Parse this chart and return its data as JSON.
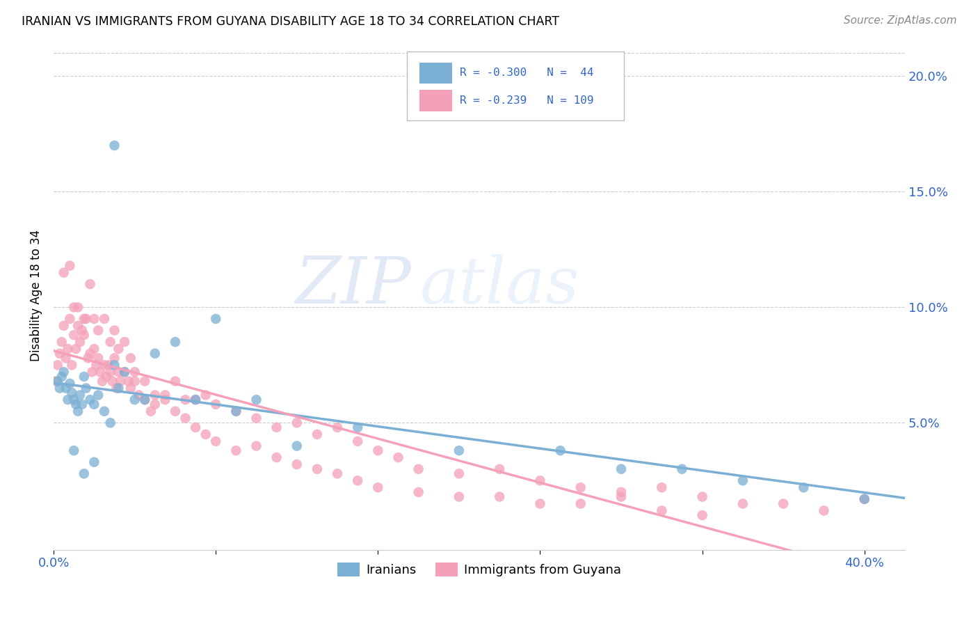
{
  "title": "IRANIAN VS IMMIGRANTS FROM GUYANA DISABILITY AGE 18 TO 34 CORRELATION CHART",
  "source": "Source: ZipAtlas.com",
  "ylabel": "Disability Age 18 to 34",
  "xlim": [
    0.0,
    0.42
  ],
  "ylim": [
    -0.005,
    0.215
  ],
  "yticks": [
    0.05,
    0.1,
    0.15,
    0.2
  ],
  "ytick_labels": [
    "5.0%",
    "10.0%",
    "15.0%",
    "20.0%"
  ],
  "xticks": [
    0.0,
    0.08,
    0.16,
    0.24,
    0.32,
    0.4
  ],
  "color_iranian": "#7bafd4",
  "color_guyana": "#f4a0b8",
  "color_text_blue": "#3366cc",
  "watermark_text": "ZIPatlas",
  "iranian_x": [
    0.002,
    0.003,
    0.004,
    0.005,
    0.006,
    0.007,
    0.008,
    0.009,
    0.01,
    0.011,
    0.012,
    0.013,
    0.014,
    0.015,
    0.016,
    0.018,
    0.02,
    0.022,
    0.025,
    0.028,
    0.03,
    0.032,
    0.035,
    0.04,
    0.045,
    0.05,
    0.06,
    0.07,
    0.08,
    0.09,
    0.1,
    0.12,
    0.15,
    0.2,
    0.25,
    0.28,
    0.31,
    0.34,
    0.37,
    0.4,
    0.03,
    0.02,
    0.015,
    0.01
  ],
  "iranian_y": [
    0.068,
    0.065,
    0.07,
    0.072,
    0.065,
    0.06,
    0.067,
    0.063,
    0.06,
    0.058,
    0.055,
    0.062,
    0.058,
    0.07,
    0.065,
    0.06,
    0.058,
    0.062,
    0.055,
    0.05,
    0.075,
    0.065,
    0.072,
    0.06,
    0.06,
    0.08,
    0.085,
    0.06,
    0.095,
    0.055,
    0.06,
    0.04,
    0.048,
    0.038,
    0.038,
    0.03,
    0.03,
    0.025,
    0.022,
    0.017,
    0.17,
    0.033,
    0.028,
    0.038
  ],
  "guyana_x": [
    0.001,
    0.002,
    0.003,
    0.004,
    0.005,
    0.006,
    0.007,
    0.008,
    0.009,
    0.01,
    0.011,
    0.012,
    0.013,
    0.014,
    0.015,
    0.016,
    0.017,
    0.018,
    0.019,
    0.02,
    0.021,
    0.022,
    0.023,
    0.024,
    0.025,
    0.026,
    0.027,
    0.028,
    0.029,
    0.03,
    0.031,
    0.032,
    0.033,
    0.035,
    0.037,
    0.038,
    0.04,
    0.042,
    0.045,
    0.048,
    0.05,
    0.055,
    0.06,
    0.065,
    0.07,
    0.075,
    0.08,
    0.09,
    0.1,
    0.11,
    0.12,
    0.13,
    0.14,
    0.15,
    0.16,
    0.17,
    0.18,
    0.2,
    0.22,
    0.24,
    0.26,
    0.28,
    0.3,
    0.32,
    0.34,
    0.36,
    0.38,
    0.4,
    0.005,
    0.008,
    0.01,
    0.012,
    0.015,
    0.018,
    0.02,
    0.022,
    0.025,
    0.028,
    0.03,
    0.032,
    0.035,
    0.038,
    0.04,
    0.045,
    0.05,
    0.055,
    0.06,
    0.065,
    0.07,
    0.075,
    0.08,
    0.09,
    0.1,
    0.11,
    0.12,
    0.13,
    0.14,
    0.15,
    0.16,
    0.18,
    0.2,
    0.22,
    0.24,
    0.26,
    0.28,
    0.3,
    0.32
  ],
  "guyana_y": [
    0.068,
    0.075,
    0.08,
    0.085,
    0.092,
    0.078,
    0.082,
    0.095,
    0.075,
    0.088,
    0.082,
    0.092,
    0.085,
    0.09,
    0.088,
    0.095,
    0.078,
    0.08,
    0.072,
    0.082,
    0.075,
    0.078,
    0.072,
    0.068,
    0.075,
    0.07,
    0.075,
    0.072,
    0.068,
    0.078,
    0.065,
    0.072,
    0.068,
    0.072,
    0.068,
    0.065,
    0.068,
    0.062,
    0.06,
    0.055,
    0.058,
    0.062,
    0.068,
    0.06,
    0.06,
    0.062,
    0.058,
    0.055,
    0.052,
    0.048,
    0.05,
    0.045,
    0.048,
    0.042,
    0.038,
    0.035,
    0.03,
    0.028,
    0.03,
    0.025,
    0.022,
    0.02,
    0.022,
    0.018,
    0.015,
    0.015,
    0.012,
    0.017,
    0.115,
    0.118,
    0.1,
    0.1,
    0.095,
    0.11,
    0.095,
    0.09,
    0.095,
    0.085,
    0.09,
    0.082,
    0.085,
    0.078,
    0.072,
    0.068,
    0.062,
    0.06,
    0.055,
    0.052,
    0.048,
    0.045,
    0.042,
    0.038,
    0.04,
    0.035,
    0.032,
    0.03,
    0.028,
    0.025,
    0.022,
    0.02,
    0.018,
    0.018,
    0.015,
    0.015,
    0.018,
    0.012,
    0.01
  ]
}
